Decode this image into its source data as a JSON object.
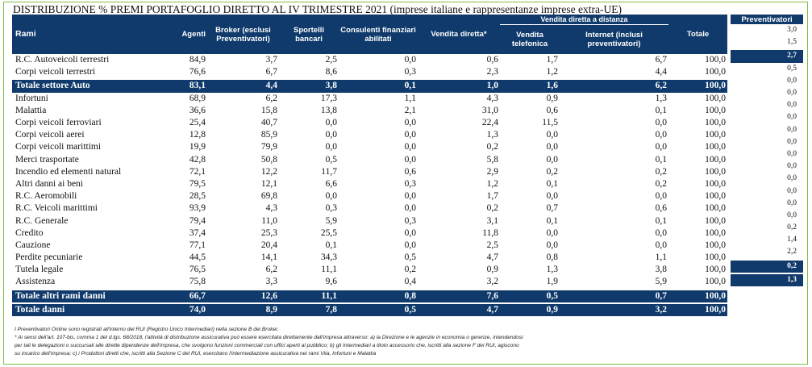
{
  "title": {
    "main": "DISTRIBUZIONE % PREMI PORTAFOGLIO DIRETTO AL IV TRIMESTRE 2021",
    "sub": "(imprese italiane e rappresentanze imprese extra-UE)"
  },
  "headers": {
    "group_distance": "Vendita diretta a distanza",
    "rami": "Rami",
    "agenti": "Agenti",
    "broker": "Broker (esclusi Preventivatori)",
    "sportelli": "Sportelli bancari",
    "consulenti": "Consulenti finanziari abilitati",
    "vendita_diretta": "Vendita diretta*",
    "vendita_telefonica": "Vendita telefonica",
    "internet": "Internet (inclusi preventivatori)",
    "totale": "Totale",
    "preventivatori": "Preventivatori"
  },
  "rows": [
    {
      "rami": "R.C. Autoveicoli terrestri",
      "agenti": "84,9",
      "broker": "3,7",
      "sportelli": "2,5",
      "consulenti": "0,0",
      "vendita_diretta": "0,6",
      "telefonica": "1,7",
      "internet": "6,7",
      "totale": "100,0",
      "prev": "3,0",
      "type": "row"
    },
    {
      "rami": "Corpi veicoli terrestri",
      "agenti": "76,6",
      "broker": "6,7",
      "sportelli": "8,6",
      "consulenti": "0,3",
      "vendita_diretta": "2,3",
      "telefonica": "1,2",
      "internet": "4,4",
      "totale": "100,0",
      "prev": "1,5",
      "type": "row"
    },
    {
      "rami": "Totale settore Auto",
      "agenti": "83,1",
      "broker": "4,4",
      "sportelli": "3,8",
      "consulenti": "0,1",
      "vendita_diretta": "1,0",
      "telefonica": "1,6",
      "internet": "6,2",
      "totale": "100,0",
      "prev": "2,7",
      "type": "total"
    },
    {
      "rami": "Infortuni",
      "agenti": "68,9",
      "broker": "6,2",
      "sportelli": "17,3",
      "consulenti": "1,1",
      "vendita_diretta": "4,3",
      "telefonica": "0,9",
      "internet": "1,3",
      "totale": "100,0",
      "prev": "0,5",
      "type": "row"
    },
    {
      "rami": "Malattia",
      "agenti": "36,6",
      "broker": "15,8",
      "sportelli": "13,8",
      "consulenti": "2,1",
      "vendita_diretta": "31,0",
      "telefonica": "0,6",
      "internet": "0,1",
      "totale": "100,0",
      "prev": "0,0",
      "type": "row"
    },
    {
      "rami": "Corpi veicoli ferroviari",
      "agenti": "25,4",
      "broker": "40,7",
      "sportelli": "0,0",
      "consulenti": "0,0",
      "vendita_diretta": "22,4",
      "telefonica": "11,5",
      "internet": "0,0",
      "totale": "100,0",
      "prev": "0,0",
      "type": "row"
    },
    {
      "rami": "Corpi veicoli aerei",
      "agenti": "12,8",
      "broker": "85,9",
      "sportelli": "0,0",
      "consulenti": "0,0",
      "vendita_diretta": "1,3",
      "telefonica": "0,0",
      "internet": "0,0",
      "totale": "100,0",
      "prev": "0,0",
      "type": "row"
    },
    {
      "rami": "Corpi veicoli marittimi",
      "agenti": "19,9",
      "broker": "79,9",
      "sportelli": "0,0",
      "consulenti": "0,0",
      "vendita_diretta": "0,2",
      "telefonica": "0,0",
      "internet": "0,0",
      "totale": "100,0",
      "prev": "0,0",
      "type": "row"
    },
    {
      "rami": "Merci trasportate",
      "agenti": "42,8",
      "broker": "50,8",
      "sportelli": "0,5",
      "consulenti": "0,0",
      "vendita_diretta": "5,8",
      "telefonica": "0,0",
      "internet": "0,1",
      "totale": "100,0",
      "prev": "0,0",
      "type": "row"
    },
    {
      "rami": "Incendio ed elementi natural",
      "agenti": "72,1",
      "broker": "12,2",
      "sportelli": "11,7",
      "consulenti": "0,6",
      "vendita_diretta": "2,9",
      "telefonica": "0,2",
      "internet": "0,2",
      "totale": "100,0",
      "prev": "0,0",
      "type": "row"
    },
    {
      "rami": "Altri danni ai beni",
      "agenti": "79,5",
      "broker": "12,1",
      "sportelli": "6,6",
      "consulenti": "0,3",
      "vendita_diretta": "1,2",
      "telefonica": "0,1",
      "internet": "0,2",
      "totale": "100,0",
      "prev": "0,0",
      "type": "row"
    },
    {
      "rami": "R.C. Aeromobili",
      "agenti": "28,5",
      "broker": "69,8",
      "sportelli": "0,0",
      "consulenti": "0,0",
      "vendita_diretta": "1,7",
      "telefonica": "0,0",
      "internet": "0,0",
      "totale": "100,0",
      "prev": "0,0",
      "type": "row"
    },
    {
      "rami": "R.C. Veicoli marittimi",
      "agenti": "93,9",
      "broker": "4,3",
      "sportelli": "0,3",
      "consulenti": "0,0",
      "vendita_diretta": "0,2",
      "telefonica": "0,7",
      "internet": "0,6",
      "totale": "100,0",
      "prev": "0,0",
      "type": "row"
    },
    {
      "rami": "R.C. Generale",
      "agenti": "79,4",
      "broker": "11,0",
      "sportelli": "5,9",
      "consulenti": "0,3",
      "vendita_diretta": "3,1",
      "telefonica": "0,1",
      "internet": "0,1",
      "totale": "100,0",
      "prev": "0,0",
      "type": "row"
    },
    {
      "rami": "Credito",
      "agenti": "37,4",
      "broker": "25,3",
      "sportelli": "25,5",
      "consulenti": "0,0",
      "vendita_diretta": "11,8",
      "telefonica": "0,0",
      "internet": "0,0",
      "totale": "100,0",
      "prev": "0,0",
      "type": "row"
    },
    {
      "rami": "Cauzione",
      "agenti": "77,1",
      "broker": "20,4",
      "sportelli": "0,1",
      "consulenti": "0,0",
      "vendita_diretta": "2,5",
      "telefonica": "0,0",
      "internet": "0,0",
      "totale": "100,0",
      "prev": "0,0",
      "type": "row"
    },
    {
      "rami": "Perdite pecuniarie",
      "agenti": "44,5",
      "broker": "14,1",
      "sportelli": "34,3",
      "consulenti": "0,5",
      "vendita_diretta": "4,7",
      "telefonica": "0,8",
      "internet": "1,1",
      "totale": "100,0",
      "prev": "0,2",
      "type": "row"
    },
    {
      "rami": "Tutela legale",
      "agenti": "76,5",
      "broker": "6,2",
      "sportelli": "11,1",
      "consulenti": "0,2",
      "vendita_diretta": "0,9",
      "telefonica": "1,3",
      "internet": "3,8",
      "totale": "100,0",
      "prev": "1,4",
      "type": "row"
    },
    {
      "rami": "Assistenza",
      "agenti": "75,8",
      "broker": "3,3",
      "sportelli": "9,6",
      "consulenti": "0,4",
      "vendita_diretta": "3,2",
      "telefonica": "1,9",
      "internet": "5,9",
      "totale": "100,0",
      "prev": "2,2",
      "type": "row"
    },
    {
      "rami": "Totale altri rami danni",
      "agenti": "66,7",
      "broker": "12,6",
      "sportelli": "11,1",
      "consulenti": "0,8",
      "vendita_diretta": "7,6",
      "telefonica": "0,5",
      "internet": "0,7",
      "totale": "100,0",
      "prev": "0,2",
      "type": "total"
    },
    {
      "rami": "Totale danni",
      "agenti": "74,0",
      "broker": "8,9",
      "sportelli": "7,8",
      "consulenti": "0,5",
      "vendita_diretta": "4,7",
      "telefonica": "0,9",
      "internet": "3,2",
      "totale": "100,0",
      "prev": "1,3",
      "type": "total"
    }
  ],
  "notes": [
    "I Preventivatori Online sono registrati all'interno del RUI (Registro Unico Intermediari) nella sezione B dei Broker.",
    "* Ai sensi dell'art. 107-bis, comma 1 del d.lgs. 68/2018, l'attività di distribuzione assicurativa può essere esercitata direttamente dall'impresa attraverso: a) la Direzione e le agenzie in economia o gerenze, intendendosi",
    "per tali le delegazioni o succursali alle dirette dipendenze dell'impresa, che svolgono funzioni commerciali con uffici aperti al pubblico; b) gli Intermediari a titolo accessorio che, iscritti alla sezione F del RUI, agiscono",
    "su incarico dell'impresa; c) i Produttori diretti che, iscritti alla Sezione C del RUI, esercitano l'intermediazione assicurativa nei rami Vita, Infortuni e Malattia"
  ],
  "colors": {
    "header_bg": "#0f3a6b",
    "border": "#7fbf3f"
  }
}
